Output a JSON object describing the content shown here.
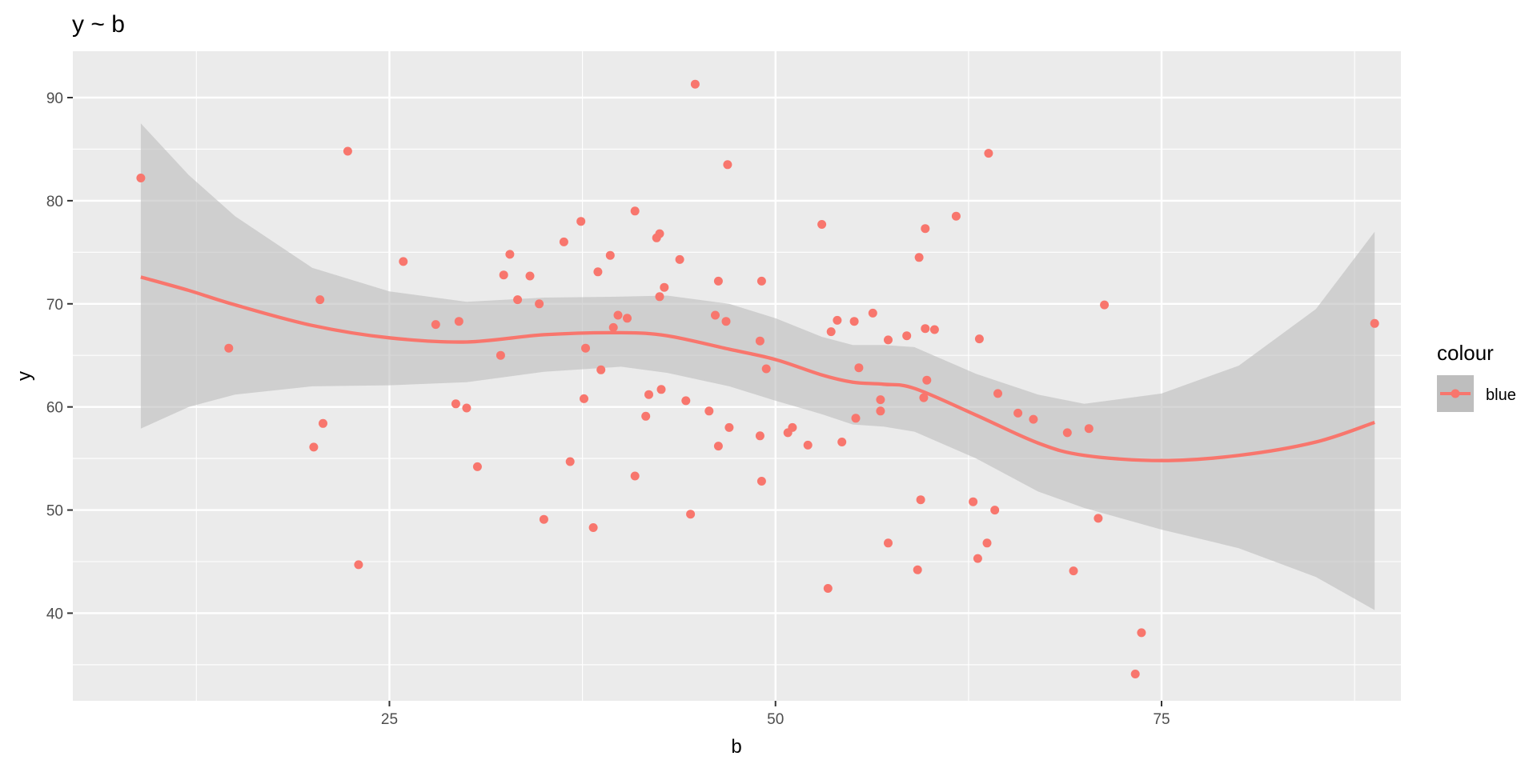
{
  "chart_data": {
    "type": "scatter",
    "title": "y ~ b",
    "xlabel": "b",
    "ylabel": "y",
    "xlim": [
      4.5,
      90.5
    ],
    "ylim": [
      31.5,
      94.5
    ],
    "x_ticks": [
      25,
      50,
      75
    ],
    "x_tick_labels": [
      "25",
      "50",
      "75"
    ],
    "y_ticks": [
      40,
      50,
      60,
      70,
      80,
      90
    ],
    "y_tick_labels": [
      "40",
      "50",
      "60",
      "70",
      "80",
      "90"
    ],
    "grid": true,
    "legend": {
      "title": "colour",
      "position": "right",
      "entries": [
        {
          "label": "blue",
          "color": "#F8766D"
        }
      ]
    },
    "colors": {
      "panel": "#EBEBEB",
      "grid": "#FFFFFF",
      "point": "#F8766D",
      "line": "#F8766D",
      "band": "#BEBEBE"
    },
    "points": [
      [
        8.9,
        82.2
      ],
      [
        14.6,
        65.7
      ],
      [
        20.5,
        70.4
      ],
      [
        20.1,
        56.1
      ],
      [
        20.7,
        58.4
      ],
      [
        22.3,
        84.8
      ],
      [
        23.0,
        44.7
      ],
      [
        25.9,
        74.1
      ],
      [
        28.0,
        68.0
      ],
      [
        29.3,
        60.3
      ],
      [
        29.5,
        68.3
      ],
      [
        30.0,
        59.9
      ],
      [
        30.7,
        54.2
      ],
      [
        32.2,
        65.0
      ],
      [
        32.4,
        72.8
      ],
      [
        32.8,
        74.8
      ],
      [
        33.3,
        70.4
      ],
      [
        34.1,
        72.7
      ],
      [
        34.7,
        70.0
      ],
      [
        35.0,
        49.1
      ],
      [
        36.3,
        76.0
      ],
      [
        36.7,
        54.7
      ],
      [
        37.4,
        78.0
      ],
      [
        37.6,
        60.8
      ],
      [
        37.7,
        65.7
      ],
      [
        38.2,
        48.3
      ],
      [
        38.5,
        73.1
      ],
      [
        38.7,
        63.6
      ],
      [
        39.3,
        74.7
      ],
      [
        39.5,
        67.7
      ],
      [
        39.8,
        68.9
      ],
      [
        40.4,
        68.6
      ],
      [
        40.9,
        79.0
      ],
      [
        40.9,
        53.3
      ],
      [
        41.6,
        59.1
      ],
      [
        41.8,
        61.2
      ],
      [
        42.3,
        76.4
      ],
      [
        42.5,
        76.8
      ],
      [
        42.5,
        70.7
      ],
      [
        42.6,
        61.7
      ],
      [
        42.8,
        71.6
      ],
      [
        43.8,
        74.3
      ],
      [
        44.2,
        60.6
      ],
      [
        44.5,
        49.6
      ],
      [
        44.8,
        91.3
      ],
      [
        45.7,
        59.6
      ],
      [
        46.1,
        68.9
      ],
      [
        46.3,
        72.2
      ],
      [
        46.3,
        56.2
      ],
      [
        46.8,
        68.3
      ],
      [
        46.9,
        83.5
      ],
      [
        47.0,
        58.0
      ],
      [
        49.0,
        66.4
      ],
      [
        49.0,
        57.2
      ],
      [
        49.1,
        72.2
      ],
      [
        49.1,
        52.8
      ],
      [
        49.4,
        63.7
      ],
      [
        50.8,
        57.5
      ],
      [
        51.1,
        58.0
      ],
      [
        52.1,
        56.3
      ],
      [
        53.0,
        77.7
      ],
      [
        53.4,
        42.4
      ],
      [
        53.6,
        67.3
      ],
      [
        54.0,
        68.4
      ],
      [
        54.3,
        56.6
      ],
      [
        55.1,
        68.3
      ],
      [
        55.2,
        58.9
      ],
      [
        55.4,
        63.8
      ],
      [
        56.3,
        69.1
      ],
      [
        56.8,
        60.7
      ],
      [
        56.8,
        59.6
      ],
      [
        57.3,
        66.5
      ],
      [
        57.3,
        46.8
      ],
      [
        58.5,
        66.9
      ],
      [
        59.2,
        44.2
      ],
      [
        59.3,
        74.5
      ],
      [
        59.4,
        51.0
      ],
      [
        59.6,
        60.9
      ],
      [
        59.7,
        77.3
      ],
      [
        59.7,
        67.6
      ],
      [
        59.8,
        62.6
      ],
      [
        60.3,
        67.5
      ],
      [
        61.7,
        78.5
      ],
      [
        62.8,
        50.8
      ],
      [
        63.1,
        45.3
      ],
      [
        63.2,
        66.6
      ],
      [
        63.7,
        46.8
      ],
      [
        63.8,
        84.6
      ],
      [
        64.2,
        50.0
      ],
      [
        64.4,
        61.3
      ],
      [
        65.7,
        59.4
      ],
      [
        66.7,
        58.8
      ],
      [
        68.9,
        57.5
      ],
      [
        69.3,
        44.1
      ],
      [
        70.3,
        57.9
      ],
      [
        70.9,
        49.2
      ],
      [
        71.3,
        69.9
      ],
      [
        73.3,
        34.1
      ],
      [
        73.7,
        38.1
      ],
      [
        88.8,
        68.1
      ]
    ],
    "smooth": {
      "x": [
        8.9,
        12,
        15,
        20,
        25,
        30,
        35,
        40,
        43,
        47,
        50,
        53,
        55,
        57,
        59,
        63,
        67,
        70,
        75,
        80,
        85,
        88.8
      ],
      "y": [
        72.6,
        71.3,
        69.9,
        67.9,
        66.7,
        66.3,
        67.0,
        67.2,
        66.9,
        65.6,
        64.6,
        63.1,
        62.4,
        62.2,
        61.8,
        59.2,
        56.5,
        55.3,
        54.8,
        55.3,
        56.6,
        58.5
      ],
      "upper": [
        87.5,
        82.5,
        78.5,
        73.5,
        71.2,
        70.2,
        70.6,
        70.7,
        70.8,
        70.0,
        68.6,
        66.8,
        66.0,
        66.0,
        65.8,
        63.2,
        61.2,
        60.3,
        61.3,
        64.0,
        69.5,
        77.0
      ],
      "lower": [
        57.9,
        60.0,
        61.2,
        62.0,
        62.1,
        62.4,
        63.4,
        63.9,
        63.3,
        62.0,
        60.6,
        59.3,
        58.3,
        58.1,
        57.6,
        55.0,
        51.8,
        50.2,
        48.1,
        46.3,
        43.5,
        40.3
      ]
    }
  }
}
